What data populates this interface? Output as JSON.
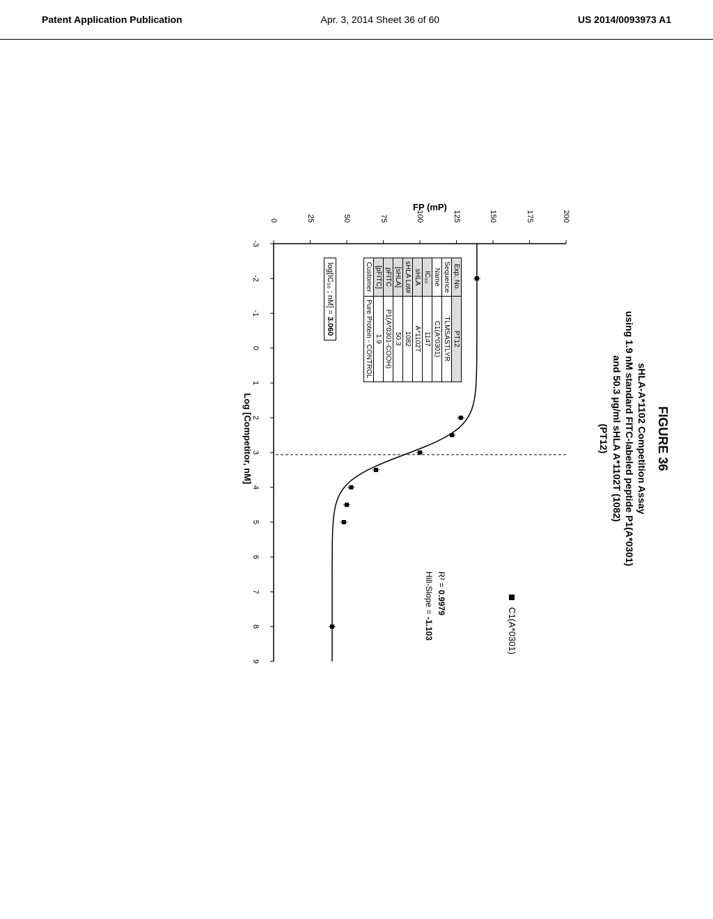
{
  "header": {
    "left": "Patent Application Publication",
    "center": "Apr. 3, 2014   Sheet 36 of 60",
    "right": "US 2014/0093973 A1"
  },
  "figure_label": "FIGURE 36",
  "chart": {
    "type": "line",
    "title_line1": "sHLA-A*1102 Competition Assay",
    "title_line2": "using 1.9 nM standard FITC-labeled peptide P1(A*0301)",
    "title_line3": "and 50.3 µg/ml sHLA A*1102T (1082)",
    "title_line4": "(PT12)",
    "ylabel": "FP (mP)",
    "xlabel": "Log [Competitor, nM]",
    "ylim": [
      0,
      200
    ],
    "xlim": [
      -3,
      9
    ],
    "ytick_step": 25,
    "xtick_step": 1,
    "yticks": [
      0,
      25,
      50,
      75,
      100,
      125,
      150,
      175,
      200
    ],
    "xticks": [
      -3,
      -2,
      -1,
      0,
      1,
      2,
      3,
      4,
      5,
      6,
      7,
      8,
      9
    ],
    "data_points": [
      {
        "x": -2,
        "y": 139
      },
      {
        "x": 2,
        "y": 128
      },
      {
        "x": 2.5,
        "y": 122
      },
      {
        "x": 3,
        "y": 100
      },
      {
        "x": 3.5,
        "y": 70
      },
      {
        "x": 4,
        "y": 53
      },
      {
        "x": 4.5,
        "y": 50
      },
      {
        "x": 5,
        "y": 48
      },
      {
        "x": 8,
        "y": 40
      }
    ],
    "ic50_line_x": 3.06,
    "point_color": "#000000",
    "line_color": "#000000",
    "background_color": "#ffffff",
    "axis_color": "#000000"
  },
  "legend": {
    "series_label": "C1(A*0301)"
  },
  "stats": {
    "r2_label": "R² =",
    "r2_value": "0.9979",
    "hillslope_label": "Hill-Slope =",
    "hillslope_value": "-1.103"
  },
  "logic50": {
    "label": "log[IC₅₀ ; nM]  =",
    "value": "3.060"
  },
  "info_table": {
    "rows": [
      {
        "label": "Exp. No.",
        "value": "PT12",
        "shaded_label": true,
        "shaded_value": true
      },
      {
        "label": "Sequence",
        "value": "TLMSASTLYR",
        "shaded_label": false,
        "shaded_value": false
      },
      {
        "label": "Name",
        "value": "C1(A*0301)",
        "shaded_label": false,
        "shaded_value": false
      },
      {
        "label": "IC₅₀",
        "value": "1147",
        "shaded_label": true,
        "shaded_value": false
      },
      {
        "label": "sHLA",
        "value": "A*1102T",
        "shaded_label": true,
        "shaded_value": false
      },
      {
        "label": "sHLA Lot#",
        "value": "1082",
        "shaded_label": true,
        "shaded_value": false
      },
      {
        "label": "[sHLA]",
        "value": "50.3",
        "shaded_label": true,
        "shaded_value": false
      },
      {
        "label": "pFITC",
        "value": "P1(A*0301-COOH)",
        "shaded_label": true,
        "shaded_value": false
      },
      {
        "label": "[pFITC]",
        "value": "1.9",
        "shaded_label": true,
        "shaded_value": false
      },
      {
        "label": "Customer",
        "value": "Pure Protein - CONTROL",
        "shaded_label": false,
        "shaded_value": false
      }
    ]
  }
}
